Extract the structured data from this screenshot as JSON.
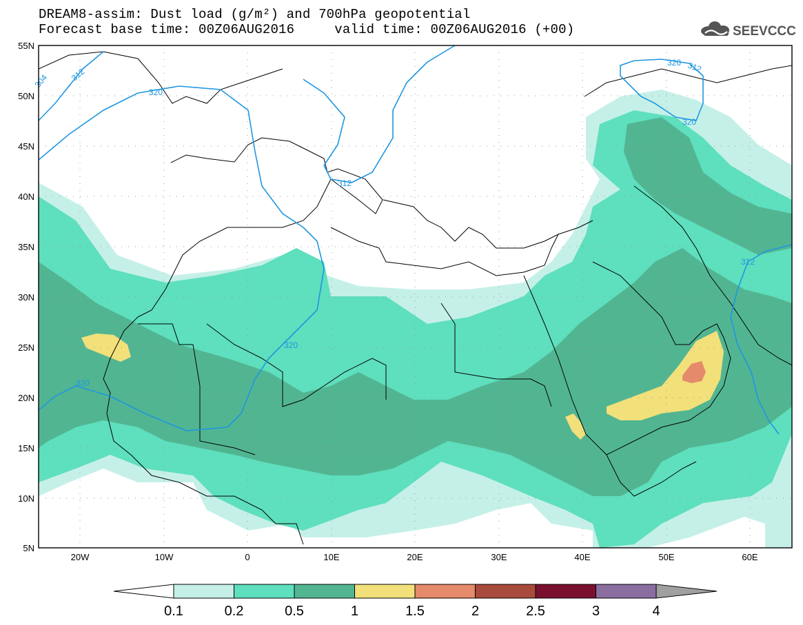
{
  "header": {
    "title_line1": "DREAM8-assim: Dust load (g/m²) and 700hPa geopotential",
    "title_line2": "Forecast base time: 00Z06AUG2016     valid time: 00Z06AUG2016 (+00)",
    "logo_text": "SEEVCCC"
  },
  "map": {
    "lat_labels": [
      "55N",
      "50N",
      "45N",
      "40N",
      "35N",
      "30N",
      "25N",
      "20N",
      "15N",
      "10N",
      "5N"
    ],
    "lon_labels": [
      "20W",
      "10W",
      "0",
      "10E",
      "20E",
      "30E",
      "40E",
      "50E",
      "60E"
    ],
    "contour_labels": [
      "312",
      "320",
      "312",
      "320",
      "320",
      "312",
      "320",
      "320",
      "312",
      "304"
    ],
    "colors": {
      "c01_02": "#c5f0e8",
      "c02_05": "#5edfbd",
      "c05_1": "#52b592",
      "c1_15": "#f2e07a",
      "c15_2": "#e58a6a",
      "contour": "#1e96e0"
    }
  },
  "colorbar": {
    "labels": [
      "0.1",
      "0.2",
      "0.5",
      "1",
      "1.5",
      "2",
      "2.5",
      "3",
      "4"
    ],
    "colors": [
      "#c5f0e8",
      "#5edfbd",
      "#52b592",
      "#f2e07a",
      "#e58a6a",
      "#a94b3c",
      "#7a1030",
      "#8a6ea0"
    ]
  }
}
